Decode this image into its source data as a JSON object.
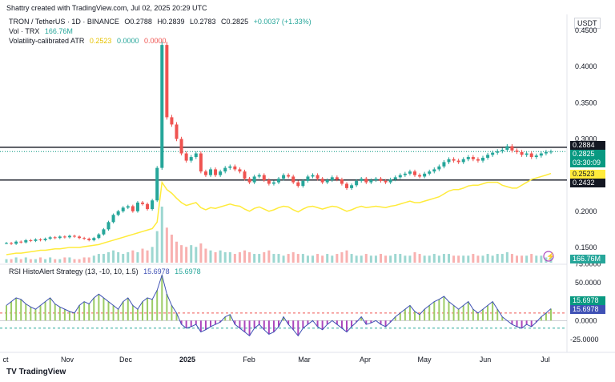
{
  "header": {
    "credit": "Shattry created with TradingView.com, Jul 02, 2025 20:29 UTC"
  },
  "legend": {
    "symbol": "TRON / TetherUS · 1D · BINANCE",
    "open": "O0.2788",
    "high": "H0.2839",
    "low": "L0.2783",
    "close": "C0.2825",
    "change": "+0.0037 (+1.33%)",
    "vol_label": "Vol · TRX",
    "vol_value": "166.76M",
    "atr_label": "Volatility-calibrated ATR",
    "atr_v1": "0.2523",
    "atr_v2": "0.0000",
    "atr_v3": "0.0000",
    "rsi_label": "RSI HistoAlert Strategy (13, -10, 10, 1.5)",
    "rsi_v1": "15.6978",
    "rsi_v2": "15.6978"
  },
  "currency": "USDT",
  "price_tags": {
    "line_upper": "0.2884",
    "price": "0.2825",
    "countdown": "03:30:09",
    "atr": "0.2523",
    "line_lower": "0.2432",
    "volume": "166.76M",
    "rsi1": "15.6978",
    "rsi2": "15.6978"
  },
  "footer": {
    "brand": "TradingView"
  },
  "colors": {
    "up": "#26a69a",
    "down": "#ef5350",
    "atr": "#ffeb3b",
    "rsi": "#3f51b5",
    "hist_up": "#9ccc65",
    "hist_down": "#ab47bc"
  },
  "chart_data": {
    "type": "candlestick",
    "symbol": "TRXUSDT",
    "interval": "1D",
    "x_ticks": [
      "ct",
      "Nov",
      "Dec",
      "2025",
      "Feb",
      "Mar",
      "Apr",
      "May",
      "Jun",
      "Jul"
    ],
    "y_ticks": [
      "0.4500",
      "0.4000",
      "0.3500",
      "0.3000",
      "0.2500",
      "0.2000",
      "0.1500"
    ],
    "ylim": [
      0.13,
      0.47
    ],
    "horizontal_lines": [
      0.2884,
      0.2432
    ],
    "close_series": [
      0.156,
      0.155,
      0.158,
      0.157,
      0.16,
      0.159,
      0.161,
      0.16,
      0.162,
      0.164,
      0.163,
      0.165,
      0.164,
      0.166,
      0.165,
      0.163,
      0.162,
      0.16,
      0.163,
      0.168,
      0.175,
      0.185,
      0.195,
      0.2,
      0.205,
      0.207,
      0.2,
      0.212,
      0.21,
      0.203,
      0.215,
      0.26,
      0.43,
      0.33,
      0.32,
      0.3,
      0.28,
      0.27,
      0.275,
      0.28,
      0.255,
      0.25,
      0.258,
      0.25,
      0.255,
      0.26,
      0.262,
      0.258,
      0.255,
      0.245,
      0.24,
      0.248,
      0.25,
      0.243,
      0.238,
      0.24,
      0.245,
      0.25,
      0.248,
      0.24,
      0.235,
      0.242,
      0.248,
      0.25,
      0.245,
      0.24,
      0.243,
      0.247,
      0.244,
      0.238,
      0.232,
      0.236,
      0.242,
      0.245,
      0.24,
      0.243,
      0.245,
      0.242,
      0.24,
      0.244,
      0.247,
      0.25,
      0.252,
      0.255,
      0.25,
      0.248,
      0.252,
      0.255,
      0.258,
      0.262,
      0.268,
      0.272,
      0.27,
      0.268,
      0.272,
      0.275,
      0.272,
      0.27,
      0.274,
      0.278,
      0.281,
      0.283,
      0.285,
      0.29,
      0.284,
      0.282,
      0.278,
      0.28,
      0.275,
      0.277,
      0.28,
      0.282,
      0.2825
    ],
    "atr_series": [
      0.14,
      0.141,
      0.142,
      0.142,
      0.143,
      0.144,
      0.145,
      0.146,
      0.146,
      0.147,
      0.148,
      0.148,
      0.149,
      0.15,
      0.15,
      0.15,
      0.151,
      0.152,
      0.153,
      0.154,
      0.156,
      0.158,
      0.16,
      0.162,
      0.164,
      0.166,
      0.168,
      0.17,
      0.172,
      0.174,
      0.176,
      0.185,
      0.24,
      0.23,
      0.225,
      0.218,
      0.212,
      0.208,
      0.21,
      0.212,
      0.205,
      0.202,
      0.205,
      0.204,
      0.206,
      0.208,
      0.21,
      0.208,
      0.207,
      0.203,
      0.2,
      0.204,
      0.206,
      0.203,
      0.2,
      0.202,
      0.205,
      0.207,
      0.206,
      0.202,
      0.199,
      0.203,
      0.206,
      0.207,
      0.205,
      0.203,
      0.205,
      0.207,
      0.206,
      0.203,
      0.2,
      0.202,
      0.205,
      0.207,
      0.205,
      0.206,
      0.207,
      0.206,
      0.205,
      0.207,
      0.208,
      0.21,
      0.212,
      0.214,
      0.212,
      0.212,
      0.214,
      0.216,
      0.218,
      0.22,
      0.224,
      0.228,
      0.23,
      0.23,
      0.232,
      0.235,
      0.236,
      0.236,
      0.238,
      0.24,
      0.24,
      0.24,
      0.236,
      0.234,
      0.232,
      0.232,
      0.236,
      0.24,
      0.244,
      0.246,
      0.248,
      0.25,
      0.2523
    ],
    "volume_series": [
      2,
      2,
      3,
      2,
      3,
      2,
      2,
      3,
      2,
      3,
      2,
      2,
      3,
      3,
      2,
      2,
      3,
      3,
      4,
      5,
      5,
      6,
      7,
      6,
      5,
      6,
      7,
      6,
      8,
      7,
      9,
      18,
      32,
      20,
      16,
      12,
      10,
      9,
      10,
      9,
      11,
      8,
      7,
      6,
      7,
      6,
      6,
      5,
      6,
      7,
      6,
      5,
      5,
      6,
      7,
      5,
      5,
      4,
      5,
      6,
      5,
      5,
      4,
      4,
      5,
      4,
      5,
      4,
      5,
      6,
      7,
      5,
      4,
      4,
      5,
      4,
      4,
      5,
      4,
      4,
      5,
      5,
      4,
      4,
      6,
      5,
      4,
      4,
      5,
      4,
      5,
      5,
      4,
      4,
      4,
      4,
      5,
      4,
      4,
      5,
      4,
      5,
      5,
      6,
      5,
      4,
      4,
      4,
      5,
      4,
      4,
      3,
      4
    ],
    "rsi_series": [
      20,
      25,
      30,
      28,
      22,
      18,
      15,
      20,
      25,
      30,
      22,
      18,
      15,
      12,
      10,
      20,
      25,
      22,
      30,
      35,
      30,
      25,
      20,
      15,
      25,
      30,
      20,
      15,
      25,
      30,
      28,
      40,
      60,
      35,
      20,
      10,
      -5,
      -10,
      -8,
      -5,
      -15,
      -12,
      -8,
      -5,
      -2,
      5,
      8,
      -5,
      -10,
      -15,
      -20,
      -10,
      -5,
      -12,
      -18,
      -15,
      -8,
      5,
      -5,
      -12,
      -20,
      -10,
      -5,
      0,
      -8,
      -12,
      -5,
      0,
      -5,
      -10,
      -15,
      -8,
      -2,
      5,
      -5,
      -3,
      0,
      -5,
      -8,
      -2,
      5,
      10,
      15,
      20,
      12,
      8,
      15,
      20,
      25,
      28,
      32,
      25,
      20,
      15,
      20,
      25,
      15,
      10,
      15,
      20,
      25,
      15,
      5,
      0,
      -5,
      -8,
      -10,
      -5,
      -8,
      -2,
      5,
      10,
      15.6978
    ]
  }
}
